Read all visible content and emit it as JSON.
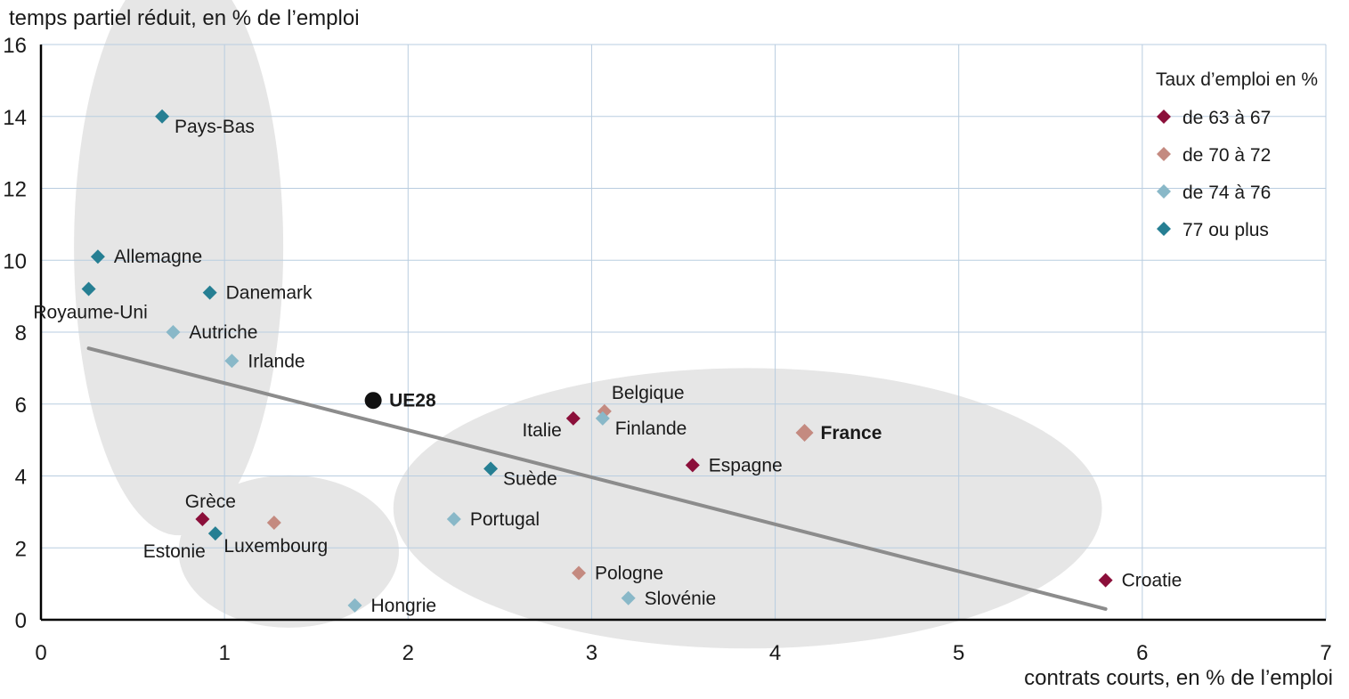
{
  "chart_data": {
    "type": "scatter",
    "ylabel": "temps partiel réduit, en % de l’emploi",
    "xlabel": "contrats courts, en % de l’emploi",
    "xlim": [
      0,
      7
    ],
    "ylim": [
      0,
      16
    ],
    "x_ticks": [
      "0",
      "1",
      "2",
      "3",
      "4",
      "5",
      "6",
      "7"
    ],
    "y_ticks": [
      "0",
      "2",
      "4",
      "6",
      "8",
      "10",
      "12",
      "14",
      "16"
    ],
    "grid": true,
    "legend": {
      "title": "Taux d’emploi en %",
      "placement": "top-right",
      "items": [
        {
          "label": "de 63 à 67",
          "color": "#8b0f3a"
        },
        {
          "label": "de 70 à 72",
          "color": "#c48a80"
        },
        {
          "label": "de 74 à 76",
          "color": "#89b8c8"
        },
        {
          "label": "77 ou plus",
          "color": "#267f93"
        }
      ]
    },
    "points": [
      {
        "name": "Pays-Bas",
        "x": 0.66,
        "y": 14.0,
        "group": 3,
        "label_pos": "right-below"
      },
      {
        "name": "Allemagne",
        "x": 0.31,
        "y": 10.1,
        "group": 3,
        "label_pos": "right"
      },
      {
        "name": "Danemark",
        "x": 0.92,
        "y": 9.1,
        "group": 3,
        "label_pos": "right"
      },
      {
        "name": "Royaume-Uni",
        "x": 0.26,
        "y": 9.2,
        "group": 3,
        "label_pos": "below"
      },
      {
        "name": "Autriche",
        "x": 0.72,
        "y": 8.0,
        "group": 2,
        "label_pos": "right"
      },
      {
        "name": "Irlande",
        "x": 1.04,
        "y": 7.2,
        "group": 2,
        "label_pos": "right"
      },
      {
        "name": "UE28",
        "x": 1.81,
        "y": 6.1,
        "group": "eu",
        "label_pos": "right"
      },
      {
        "name": "Grèce",
        "x": 0.88,
        "y": 2.8,
        "group": 0,
        "label_pos": "above"
      },
      {
        "name": "Estonie",
        "x": 0.95,
        "y": 2.4,
        "group": 3,
        "label_pos": "below-left"
      },
      {
        "name": "Luxembourg",
        "x": 1.27,
        "y": 2.7,
        "group": 1,
        "label_pos": "below"
      },
      {
        "name": "Hongrie",
        "x": 1.71,
        "y": 0.4,
        "group": 2,
        "label_pos": "right"
      },
      {
        "name": "Suède",
        "x": 2.45,
        "y": 4.2,
        "group": 3,
        "label_pos": "right-below"
      },
      {
        "name": "Portugal",
        "x": 2.25,
        "y": 2.8,
        "group": 2,
        "label_pos": "right"
      },
      {
        "name": "Italie",
        "x": 2.9,
        "y": 5.6,
        "group": 0,
        "label_pos": "left-below"
      },
      {
        "name": "Belgique",
        "x": 3.07,
        "y": 5.8,
        "group": 1,
        "label_pos": "right-above"
      },
      {
        "name": "Finlande",
        "x": 3.06,
        "y": 5.6,
        "group": 2,
        "label_pos": "right-below"
      },
      {
        "name": "Espagne",
        "x": 3.55,
        "y": 4.3,
        "group": 0,
        "label_pos": "right"
      },
      {
        "name": "France",
        "x": 4.16,
        "y": 5.2,
        "group": 1,
        "label_pos": "right",
        "bold": true
      },
      {
        "name": "Pologne",
        "x": 2.93,
        "y": 1.3,
        "group": 1,
        "label_pos": "right"
      },
      {
        "name": "Slovénie",
        "x": 3.2,
        "y": 0.6,
        "group": 2,
        "label_pos": "right"
      },
      {
        "name": "Croatie",
        "x": 5.8,
        "y": 1.1,
        "group": 0,
        "label_pos": "right"
      }
    ],
    "trend_line": {
      "x": [
        0.26,
        5.8
      ],
      "y": [
        7.55,
        0.3
      ],
      "color": "#8c8c8c"
    },
    "clusters": [
      {
        "cx": 0.75,
        "cy": 10.35,
        "rx": 0.57,
        "ry": 8.0
      },
      {
        "cx": 1.35,
        "cy": 1.9,
        "rx": 0.6,
        "ry": 2.12
      },
      {
        "cx": 3.85,
        "cy": 3.1,
        "rx": 1.93,
        "ry": 3.9
      }
    ]
  }
}
